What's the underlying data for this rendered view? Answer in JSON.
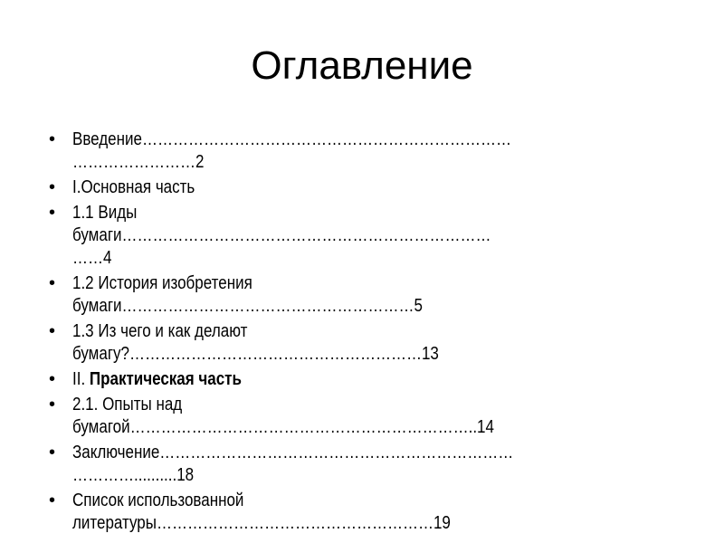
{
  "title": "Оглавление",
  "items": [
    {
      "lines": [
        "Введение………………………………………………………………",
        "……………………2"
      ]
    },
    {
      "lines": [
        "I.Основная часть"
      ]
    },
    {
      "lines": [
        "1.1 Виды",
        "бумаги………………………………………………………………",
        "……4"
      ]
    },
    {
      "lines": [
        "1.2 История изобретения",
        "бумаги…………………………………………………5"
      ]
    },
    {
      "lines": [
        "1.3 Из чего и как делают",
        "бумагу?…………………………………………………13"
      ]
    },
    {
      "prefix": "II. ",
      "bold_text": "Практическая часть"
    },
    {
      "lines": [
        "2.1. Опыты над",
        "бумагой…………………………………………………………..14"
      ]
    },
    {
      "lines": [
        "Заключение……………………………………………………………",
        "…………..........18"
      ]
    },
    {
      "lines": [
        "Список использованной",
        "литературы………………………………………………19"
      ]
    }
  ]
}
